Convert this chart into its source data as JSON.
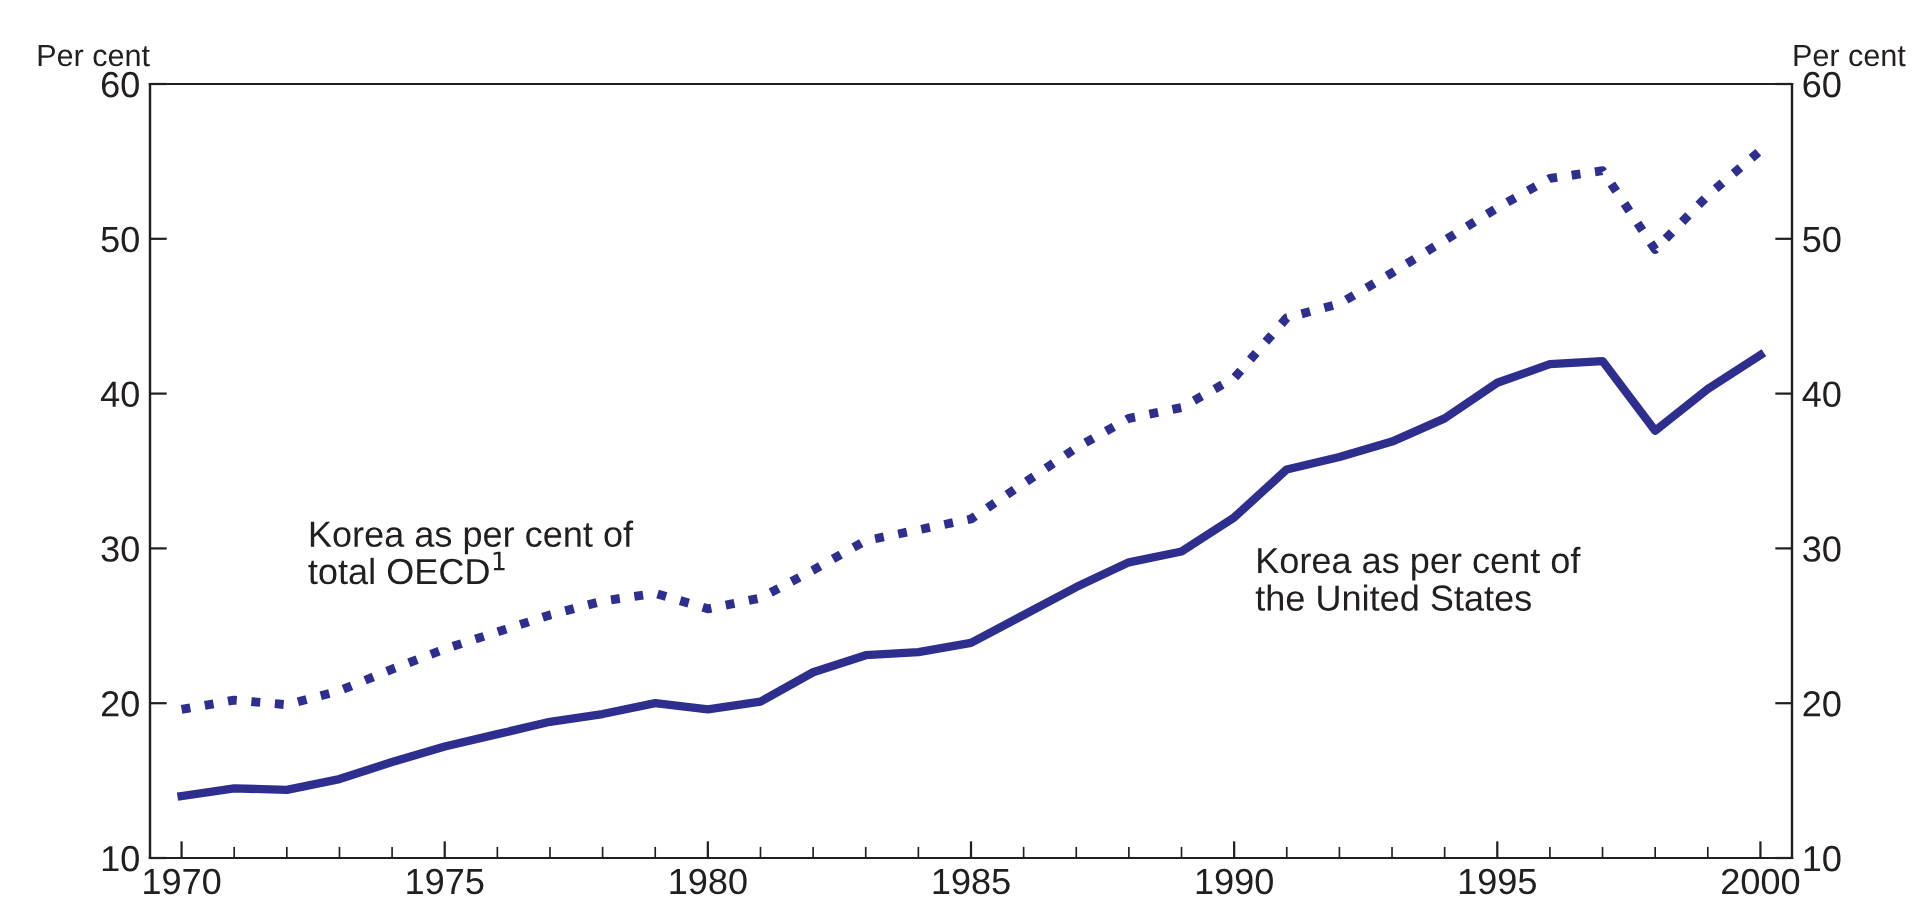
{
  "chart_data": {
    "type": "line",
    "x": [
      1970,
      1971,
      1972,
      1973,
      1974,
      1975,
      1976,
      1977,
      1978,
      1979,
      1980,
      1981,
      1982,
      1983,
      1984,
      1985,
      1986,
      1987,
      1988,
      1989,
      1990,
      1991,
      1992,
      1993,
      1994,
      1995,
      1996,
      1997,
      1998,
      1999,
      2000
    ],
    "series": [
      {
        "name": "Korea as per cent of total OECD$^{1}$",
        "color": "#2e2e8f",
        "line_style": "dotted",
        "values": [
          19.6,
          20.2,
          19.9,
          20.8,
          22.2,
          23.5,
          24.6,
          25.7,
          26.6,
          27.1,
          26.1,
          26.8,
          28.6,
          30.5,
          31.2,
          31.9,
          34.2,
          36.5,
          38.4,
          39.1,
          41.0,
          44.9,
          45.8,
          47.8,
          49.9,
          52.0,
          53.9,
          54.4,
          49.3,
          52.8,
          55.7
        ]
      },
      {
        "name": "Korea as per cent of the United States",
        "color": "#2e2e8f",
        "line_style": "solid",
        "values": [
          14.0,
          14.5,
          14.4,
          15.1,
          16.2,
          17.2,
          18.0,
          18.8,
          19.3,
          20.0,
          19.6,
          20.1,
          22.0,
          23.1,
          23.3,
          23.9,
          25.7,
          27.5,
          29.1,
          29.8,
          32.0,
          35.1,
          35.9,
          36.9,
          38.4,
          40.7,
          41.9,
          42.1,
          37.6,
          40.3,
          42.5
        ]
      }
    ],
    "ylabel": "Per cent",
    "y2label": "Per cent",
    "xlim": [
      1969.4,
      2000.6
    ],
    "xticks": [
      1970,
      1975,
      1980,
      1985,
      1990,
      1995,
      2000
    ],
    "ylim": [
      10,
      60
    ],
    "yticks": [
      10,
      20,
      30,
      40,
      50,
      60
    ],
    "y2lim": [
      10,
      60
    ],
    "y2ticks": [
      10,
      20,
      30,
      40,
      50,
      60
    ],
    "grid": false,
    "legend": false
  }
}
